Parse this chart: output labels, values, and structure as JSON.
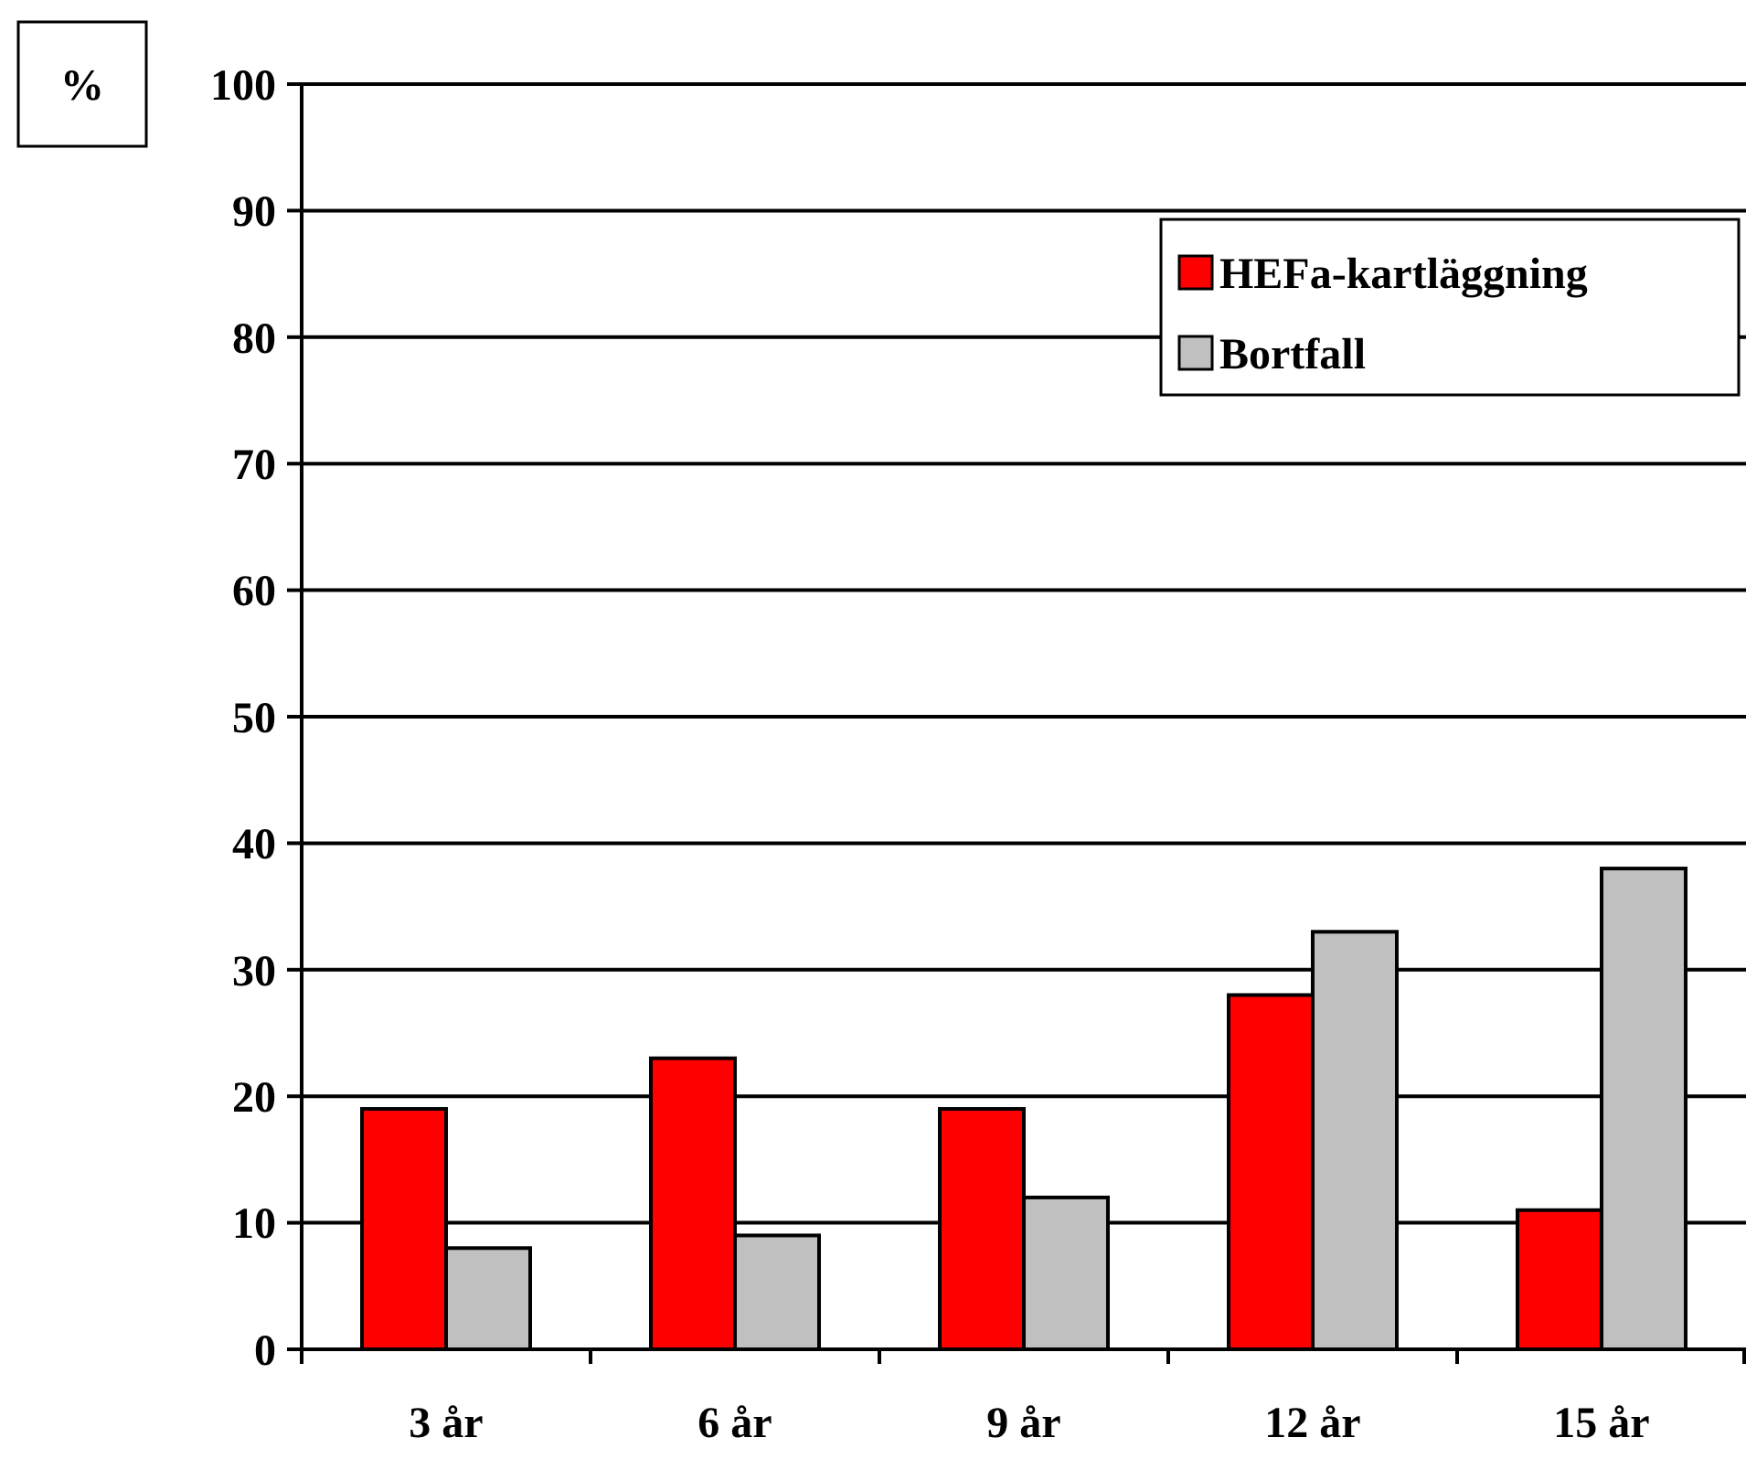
{
  "chart_data": {
    "type": "bar",
    "ylabel": "%",
    "categories": [
      "3 år",
      "6 år",
      "9 år",
      "12 år",
      "15 år"
    ],
    "series": [
      {
        "name": "HEFa-kartläggning",
        "color": "#ff0000",
        "values": [
          19,
          23,
          19,
          28,
          11
        ]
      },
      {
        "name": "Bortfall",
        "color": "#c0c0c0",
        "values": [
          8,
          9,
          12,
          33,
          38
        ]
      }
    ],
    "ylim": [
      0,
      100
    ],
    "yticks": [
      0,
      10,
      20,
      30,
      40,
      50,
      60,
      70,
      80,
      90,
      100
    ],
    "grid": "y",
    "legend": "top right"
  }
}
